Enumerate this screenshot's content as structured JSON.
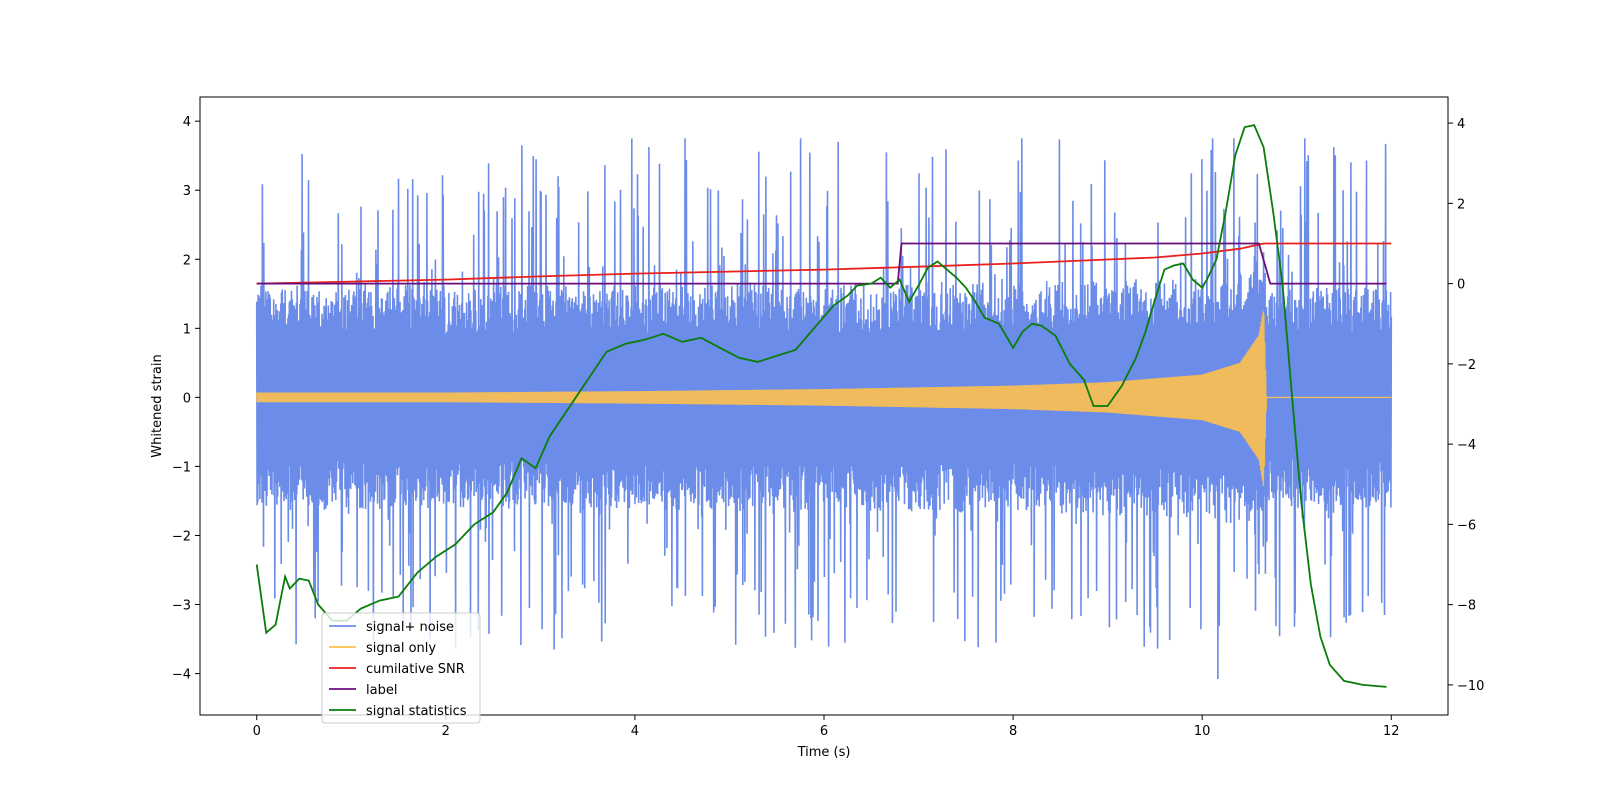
{
  "chart_data": {
    "type": "line",
    "xlabel": "Time (s)",
    "ylabel": "Whitened strain",
    "xlim": [
      -0.6,
      12.6
    ],
    "ylim": [
      -4.6,
      4.35
    ],
    "y2lim": [
      -10.75,
      4.65
    ],
    "x_ticks": [
      0,
      2,
      4,
      6,
      8,
      10,
      12
    ],
    "y_ticks": [
      -4,
      -3,
      -2,
      -1,
      0,
      1,
      2,
      3,
      4
    ],
    "y2_ticks": [
      -10,
      -8,
      -6,
      -4,
      -2,
      0,
      2,
      4
    ],
    "grid": false,
    "legend_position": "lower-left",
    "series": [
      {
        "name": "signal+ noise",
        "color": "#6b8ce8",
        "axis": "left",
        "description_values": {
          "x_start": 0,
          "x_end": 12,
          "noise_low_band": -1.6,
          "noise_high_band": 1.6,
          "peak_max": 3.75,
          "peak_min": -4.15
        }
      },
      {
        "name": "signal only",
        "color": "#ffc04d",
        "axis": "left",
        "envelope": [
          {
            "x": 0,
            "a": 0.07
          },
          {
            "x": 2,
            "a": 0.07
          },
          {
            "x": 4,
            "a": 0.09
          },
          {
            "x": 6,
            "a": 0.12
          },
          {
            "x": 8,
            "a": 0.17
          },
          {
            "x": 9,
            "a": 0.22
          },
          {
            "x": 10,
            "a": 0.33
          },
          {
            "x": 10.4,
            "a": 0.5
          },
          {
            "x": 10.6,
            "a": 0.9
          },
          {
            "x": 10.65,
            "a": 1.3
          },
          {
            "x": 10.68,
            "a": 0.0
          },
          {
            "x": 12,
            "a": 0.0
          }
        ]
      },
      {
        "name": "cumilative SNR",
        "color": "#e8201e",
        "axis": "right",
        "points": [
          [
            0,
            0.0
          ],
          [
            1,
            0.05
          ],
          [
            2,
            0.1
          ],
          [
            3,
            0.18
          ],
          [
            4,
            0.25
          ],
          [
            5,
            0.3
          ],
          [
            6,
            0.35
          ],
          [
            7,
            0.42
          ],
          [
            8,
            0.5
          ],
          [
            9,
            0.6
          ],
          [
            9.5,
            0.65
          ],
          [
            10,
            0.75
          ],
          [
            10.4,
            0.87
          ],
          [
            10.65,
            1.0
          ],
          [
            12,
            1.0
          ]
        ]
      },
      {
        "name": "label",
        "color": "#6a0e7e",
        "axis": "right",
        "points": [
          [
            0,
            0
          ],
          [
            6.78,
            0
          ],
          [
            6.82,
            1
          ],
          [
            10.6,
            1
          ],
          [
            10.72,
            0
          ],
          [
            11.95,
            0
          ]
        ]
      },
      {
        "name": "signal statistics",
        "color": "#0a7d0a",
        "axis": "right",
        "points": [
          [
            0,
            -7.0
          ],
          [
            0.1,
            -8.7
          ],
          [
            0.2,
            -8.5
          ],
          [
            0.3,
            -7.3
          ],
          [
            0.35,
            -7.6
          ],
          [
            0.45,
            -7.35
          ],
          [
            0.55,
            -7.4
          ],
          [
            0.65,
            -8.0
          ],
          [
            0.8,
            -8.4
          ],
          [
            0.95,
            -8.4
          ],
          [
            1.1,
            -8.1
          ],
          [
            1.3,
            -7.9
          ],
          [
            1.5,
            -7.8
          ],
          [
            1.7,
            -7.2
          ],
          [
            1.9,
            -6.8
          ],
          [
            2.1,
            -6.5
          ],
          [
            2.3,
            -6.0
          ],
          [
            2.5,
            -5.7
          ],
          [
            2.65,
            -5.2
          ],
          [
            2.8,
            -4.35
          ],
          [
            2.95,
            -4.6
          ],
          [
            3.1,
            -3.8
          ],
          [
            3.3,
            -3.1
          ],
          [
            3.5,
            -2.4
          ],
          [
            3.7,
            -1.7
          ],
          [
            3.9,
            -1.5
          ],
          [
            4.1,
            -1.4
          ],
          [
            4.3,
            -1.25
          ],
          [
            4.5,
            -1.45
          ],
          [
            4.7,
            -1.35
          ],
          [
            4.9,
            -1.6
          ],
          [
            5.1,
            -1.85
          ],
          [
            5.3,
            -1.95
          ],
          [
            5.5,
            -1.8
          ],
          [
            5.7,
            -1.65
          ],
          [
            5.9,
            -1.1
          ],
          [
            6.1,
            -0.55
          ],
          [
            6.25,
            -0.3
          ],
          [
            6.35,
            -0.05
          ],
          [
            6.5,
            0.0
          ],
          [
            6.6,
            0.15
          ],
          [
            6.7,
            -0.1
          ],
          [
            6.8,
            0.1
          ],
          [
            6.9,
            -0.45
          ],
          [
            7.0,
            -0.05
          ],
          [
            7.1,
            0.4
          ],
          [
            7.2,
            0.55
          ],
          [
            7.3,
            0.35
          ],
          [
            7.4,
            0.15
          ],
          [
            7.5,
            -0.1
          ],
          [
            7.6,
            -0.45
          ],
          [
            7.7,
            -0.85
          ],
          [
            7.85,
            -1.0
          ],
          [
            8.0,
            -1.6
          ],
          [
            8.1,
            -1.2
          ],
          [
            8.2,
            -1.0
          ],
          [
            8.3,
            -1.05
          ],
          [
            8.45,
            -1.3
          ],
          [
            8.6,
            -2.0
          ],
          [
            8.75,
            -2.4
          ],
          [
            8.85,
            -3.05
          ],
          [
            9.0,
            -3.05
          ],
          [
            9.15,
            -2.55
          ],
          [
            9.3,
            -1.85
          ],
          [
            9.4,
            -1.2
          ],
          [
            9.5,
            -0.4
          ],
          [
            9.6,
            0.35
          ],
          [
            9.7,
            0.45
          ],
          [
            9.8,
            0.5
          ],
          [
            9.9,
            0.1
          ],
          [
            10.0,
            -0.1
          ],
          [
            10.05,
            0.1
          ],
          [
            10.15,
            0.6
          ],
          [
            10.25,
            1.8
          ],
          [
            10.35,
            3.2
          ],
          [
            10.45,
            3.9
          ],
          [
            10.55,
            3.95
          ],
          [
            10.65,
            3.4
          ],
          [
            10.75,
            1.8
          ],
          [
            10.85,
            0.0
          ],
          [
            10.95,
            -2.8
          ],
          [
            11.05,
            -5.5
          ],
          [
            11.15,
            -7.5
          ],
          [
            11.25,
            -8.8
          ],
          [
            11.35,
            -9.5
          ],
          [
            11.5,
            -9.9
          ],
          [
            11.7,
            -10.0
          ],
          [
            11.95,
            -10.05
          ]
        ]
      }
    ]
  }
}
